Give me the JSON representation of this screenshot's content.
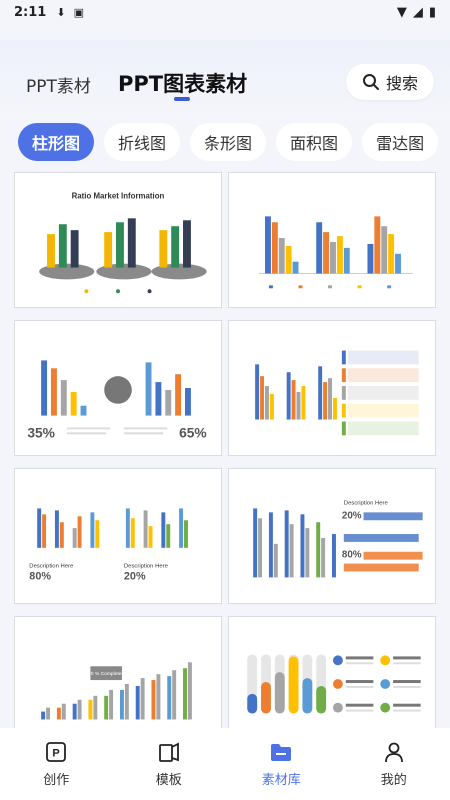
{
  "status": {
    "time": "2:11"
  },
  "top_tabs": {
    "tab1": "PPT素材",
    "tab2": "PPT图表素材"
  },
  "search": {
    "label": "搜索"
  },
  "chips": [
    "柱形图",
    "折线图",
    "条形图",
    "面积图",
    "雷达图"
  ],
  "cards": [
    {
      "title": "Ratio Market Information"
    },
    {
      "title": ""
    },
    {
      "left_pct": "35%",
      "right_pct": "65%"
    },
    {
      "title": ""
    },
    {
      "left_pct": "80%",
      "right_pct": "20%",
      "desc": "Description Here"
    },
    {
      "pct1": "20%",
      "pct2": "80%",
      "desc": "Description Here"
    },
    {
      "badge": "90 % Completed"
    },
    {
      "title": ""
    }
  ],
  "tabbar": {
    "items": [
      "创作",
      "模板",
      "素材库",
      "我的"
    ],
    "active_index": 2
  },
  "colors": {
    "accent": "#4e72e6",
    "blue": "#4472c4",
    "orange": "#ed7d31",
    "gray": "#a5a5a5",
    "yellow": "#ffc000",
    "lightblue": "#5b9bd5",
    "green": "#70ad47"
  }
}
